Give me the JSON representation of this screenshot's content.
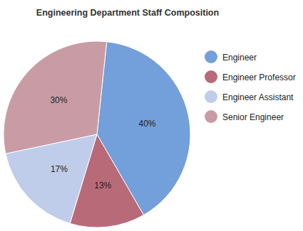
{
  "chart_data": {
    "type": "pie",
    "title": "Engineering Department Staff Composition",
    "categories": [
      "Engineer",
      "Engineer Professor",
      "Engineer Assistant",
      "Senior Engineer"
    ],
    "values": [
      40,
      13,
      17,
      30
    ],
    "value_labels": [
      "40%",
      "13%",
      "17%",
      "30%"
    ],
    "colors": [
      "#739fda",
      "#b86a79",
      "#bfcdea",
      "#c99ca5"
    ],
    "data_labels": true,
    "legend": "right"
  }
}
